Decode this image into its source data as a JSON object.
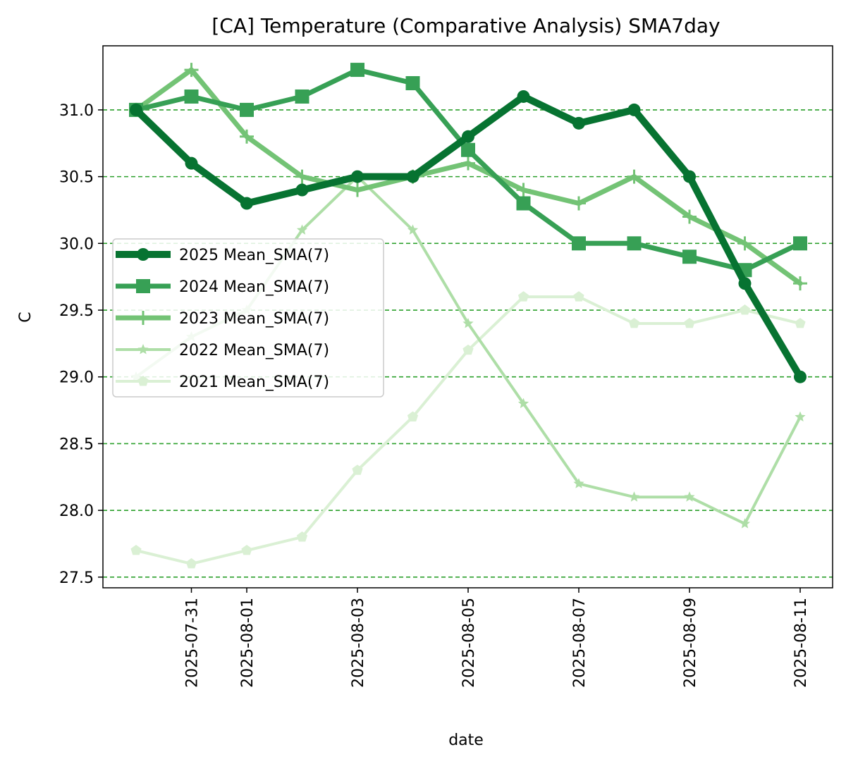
{
  "chart_data": {
    "type": "line",
    "title": "[CA] Temperature (Comparative Analysis) SMA7day",
    "xlabel": "date",
    "ylabel": "C",
    "x": [
      "2025-07-30",
      "2025-07-31",
      "2025-08-01",
      "2025-08-02",
      "2025-08-03",
      "2025-08-04",
      "2025-08-05",
      "2025-08-06",
      "2025-08-07",
      "2025-08-08",
      "2025-08-09",
      "2025-08-10",
      "2025-08-11"
    ],
    "x_ticks": [
      "2025-07-31",
      "2025-08-01",
      "2025-08-03",
      "2025-08-05",
      "2025-08-07",
      "2025-08-09",
      "2025-08-11"
    ],
    "y_ticks": [
      "27.5",
      "28.0",
      "28.5",
      "29.0",
      "29.5",
      "30.0",
      "30.5",
      "31.0"
    ],
    "ylim": [
      27.42,
      31.48
    ],
    "grid": "horizontal dashed",
    "legend_position": "center-left",
    "series": [
      {
        "name": "2025 Mean_SMA(7)",
        "color": "#077331",
        "marker": "circle",
        "width": "thick",
        "values": [
          31.0,
          30.6,
          30.3,
          30.4,
          30.5,
          30.5,
          30.8,
          31.1,
          30.9,
          31.0,
          30.5,
          29.7,
          29.0
        ]
      },
      {
        "name": "2024 Mean_SMA(7)",
        "color": "#37a055",
        "marker": "square",
        "width": "medium",
        "values": [
          31.0,
          31.1,
          31.0,
          31.1,
          31.3,
          31.2,
          30.7,
          30.3,
          30.0,
          30.0,
          29.9,
          29.8,
          30.0
        ]
      },
      {
        "name": "2023 Mean_SMA(7)",
        "color": "#73c375",
        "marker": "plus",
        "width": "medium",
        "values": [
          31.0,
          31.3,
          30.8,
          30.5,
          30.4,
          30.5,
          30.6,
          30.4,
          30.3,
          30.5,
          30.2,
          30.0,
          29.7
        ]
      },
      {
        "name": "2022 Mean_SMA(7)",
        "color": "#aedea7",
        "marker": "star",
        "width": "thin",
        "values": [
          29.0,
          29.3,
          29.5,
          30.1,
          30.5,
          30.1,
          29.4,
          28.8,
          28.2,
          28.1,
          28.1,
          27.9,
          28.7
        ]
      },
      {
        "name": "2021 Mean_SMA(7)",
        "color": "#daf0d4",
        "marker": "pentagon",
        "width": "thin",
        "values": [
          27.7,
          27.6,
          27.7,
          27.8,
          28.3,
          28.7,
          29.2,
          29.6,
          29.6,
          29.4,
          29.4,
          29.5,
          29.4
        ]
      }
    ]
  }
}
